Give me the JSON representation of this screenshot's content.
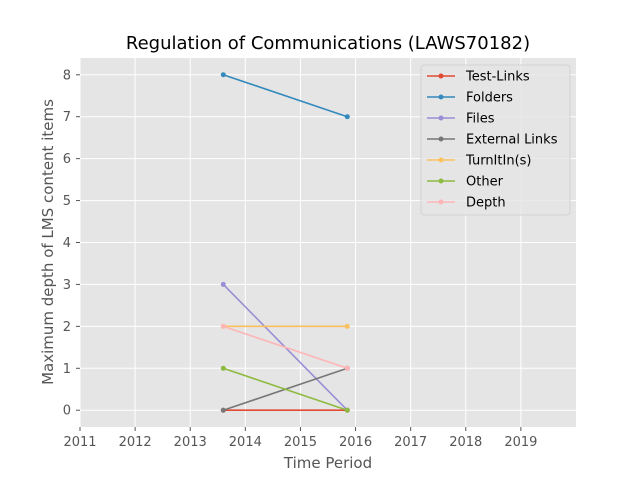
{
  "chart_data": {
    "type": "line",
    "title": "Regulation of Communications (LAWS70182)",
    "xlabel": "Time Period",
    "ylabel": "Maximum depth of LMS content items",
    "xlim": [
      2011,
      2020
    ],
    "ylim": [
      -0.4,
      8.4
    ],
    "xticks": [
      2011,
      2012,
      2013,
      2014,
      2015,
      2016,
      2017,
      2018,
      2019
    ],
    "yticks": [
      0,
      1,
      2,
      3,
      4,
      5,
      6,
      7,
      8
    ],
    "grid": true,
    "legend_position": "upper-right",
    "x": [
      2013.6,
      2015.85
    ],
    "series": [
      {
        "name": "Test-Links",
        "color": "#E24A33",
        "values": [
          0,
          0
        ]
      },
      {
        "name": "Folders",
        "color": "#348ABD",
        "values": [
          8,
          7
        ]
      },
      {
        "name": "Files",
        "color": "#988ED5",
        "values": [
          3,
          0
        ]
      },
      {
        "name": "External Links",
        "color": "#777777",
        "values": [
          0,
          1
        ]
      },
      {
        "name": "TurnItIn(s)",
        "color": "#FBC15E",
        "values": [
          2,
          2
        ]
      },
      {
        "name": "Other",
        "color": "#8EBA42",
        "values": [
          1,
          0
        ]
      },
      {
        "name": "Depth",
        "color": "#FFB5B8",
        "values": [
          2,
          1
        ]
      }
    ]
  }
}
